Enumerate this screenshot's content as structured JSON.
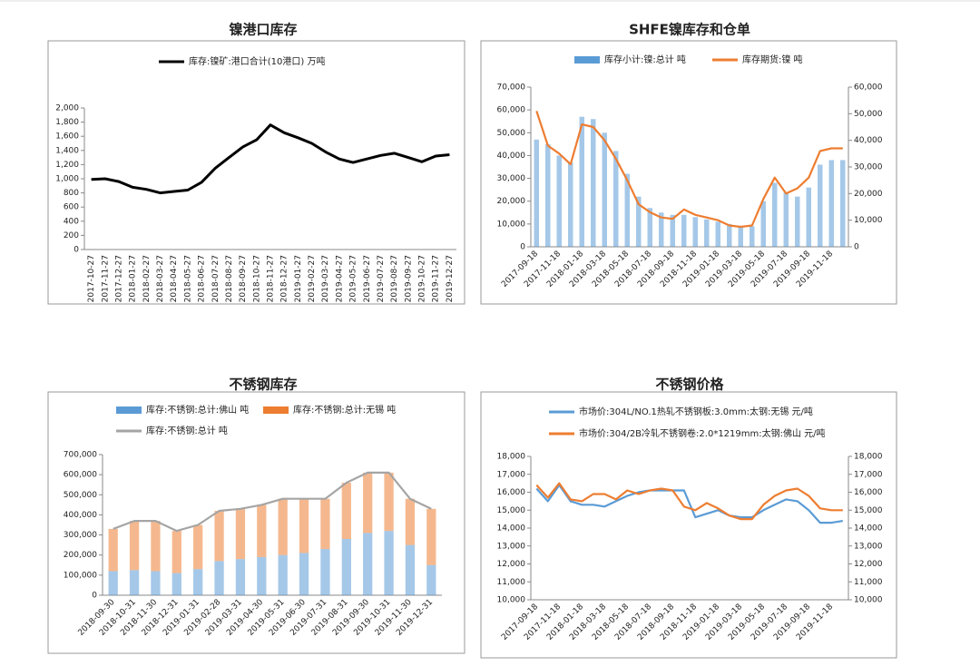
{
  "chart_data": [
    {
      "type": "line",
      "title": "镍港口库存",
      "categories": [
        "2017-10-27",
        "2017-11-27",
        "2017-12-27",
        "2018-01-27",
        "2018-02-27",
        "2018-03-27",
        "2018-04-27",
        "2018-05-27",
        "2018-06-27",
        "2018-07-27",
        "2018-08-27",
        "2018-09-27",
        "2018-10-27",
        "2018-11-27",
        "2018-12-27",
        "2019-01-27",
        "2019-02-27",
        "2019-03-27",
        "2019-04-27",
        "2019-05-27",
        "2019-06-27",
        "2019-07-27",
        "2019-08-27",
        "2019-09-27",
        "2019-10-27",
        "2019-11-27",
        "2019-12-27"
      ],
      "series": [
        {
          "name": "库存:镍矿:港口合计(10港口) 万吨",
          "color": "#000000",
          "kind": "line",
          "values": [
            990,
            1000,
            960,
            880,
            850,
            800,
            820,
            840,
            950,
            1150,
            1300,
            1450,
            1550,
            1760,
            1650,
            1580,
            1500,
            1380,
            1280,
            1230,
            1280,
            1330,
            1360,
            1300,
            1240,
            1320,
            1340
          ]
        }
      ],
      "ylim": [
        0,
        2000
      ],
      "yticks": [
        0,
        200,
        400,
        600,
        800,
        {
          "value": 1000,
          "label": "1,000"
        },
        {
          "value": 1200,
          "label": "1,200"
        },
        {
          "value": 1400,
          "label": "1,400"
        },
        {
          "value": 1600,
          "label": "1,600"
        },
        {
          "value": 1800,
          "label": "1,800"
        },
        {
          "value": 2000,
          "label": "2,000"
        }
      ]
    },
    {
      "type": "bar",
      "title": "SHFE镍库存和仓单",
      "categories": [
        "2017-09-18",
        null,
        "2017-11-18",
        null,
        "2018-01-18",
        null,
        "2018-03-18",
        null,
        "2018-05-18",
        null,
        "2018-07-18",
        null,
        "2018-09-18",
        null,
        "2018-11-18",
        null,
        "2019-01-18",
        null,
        "2019-03-18",
        null,
        "2019-05-18",
        null,
        "2019-07-18",
        null,
        "2019-09-18",
        null,
        "2019-11-18",
        null
      ],
      "series": [
        {
          "name": "库存小计:镍:总计 吨",
          "color": "#5b9bd5",
          "kind": "bar",
          "values": [
            47000,
            45000,
            40000,
            37000,
            57000,
            56000,
            50000,
            42000,
            32000,
            22000,
            17000,
            15000,
            14000,
            14000,
            13000,
            12000,
            11000,
            10000,
            9000,
            9000,
            20000,
            28000,
            24000,
            22000,
            26000,
            36000,
            38000,
            38000
          ]
        },
        {
          "name": "库存期货:镍 吨",
          "color": "#ed7d31",
          "kind": "line",
          "axis": "y2",
          "values": [
            51000,
            38000,
            35000,
            31000,
            46000,
            45000,
            40000,
            33000,
            25000,
            16000,
            13000,
            11000,
            10500,
            14000,
            12000,
            11000,
            10000,
            8000,
            7500,
            8000,
            18000,
            26000,
            20000,
            22000,
            26000,
            36000,
            37000,
            37000
          ]
        }
      ],
      "ylim": [
        0,
        70000
      ],
      "yticks": [
        0,
        {
          "value": 10000,
          "label": "10,000"
        },
        {
          "value": 20000,
          "label": "20,000"
        },
        {
          "value": 30000,
          "label": "30,000"
        },
        {
          "value": 40000,
          "label": "40,000"
        },
        {
          "value": 50000,
          "label": "50,000"
        },
        {
          "value": 60000,
          "label": "60,000"
        },
        {
          "value": 70000,
          "label": "70,000"
        }
      ],
      "y2lim": [
        0,
        60000
      ],
      "y2ticks": [
        0,
        {
          "value": 10000,
          "label": "10,000"
        },
        {
          "value": 20000,
          "label": "20,000"
        },
        {
          "value": 30000,
          "label": "30,000"
        },
        {
          "value": 40000,
          "label": "40,000"
        },
        {
          "value": 50000,
          "label": "50,000"
        },
        {
          "value": 60000,
          "label": "60,000"
        }
      ]
    },
    {
      "type": "bar",
      "title": "不锈钢库存",
      "stacked": true,
      "categories": [
        "2018-09-30",
        "2018-10-31",
        "2018-11-30",
        "2018-12-31",
        "2019-01-31",
        "2019-02-28",
        "2019-03-31",
        "2019-04-30",
        "2019-05-31",
        "2019-06-30",
        "2019-07-31",
        "2019-08-31",
        "2019-09-30",
        "2019-10-31",
        "2019-11-30",
        "2019-12-31"
      ],
      "series": [
        {
          "name": "库存:不锈钢:总计:佛山 吨",
          "color": "#5b9bd5",
          "kind": "bar",
          "values": [
            120000,
            125000,
            120000,
            110000,
            130000,
            170000,
            180000,
            190000,
            200000,
            210000,
            230000,
            280000,
            310000,
            320000,
            250000,
            150000
          ]
        },
        {
          "name": "库存:不锈钢:总计:无锡 吨",
          "color": "#ed7d31",
          "kind": "bar",
          "values": [
            210000,
            245000,
            250000,
            210000,
            220000,
            250000,
            250000,
            260000,
            280000,
            270000,
            250000,
            280000,
            300000,
            290000,
            230000,
            280000
          ]
        },
        {
          "name": "库存:不锈钢:总计 吨",
          "color": "#a5a5a5",
          "kind": "line",
          "values": [
            330000,
            370000,
            370000,
            320000,
            350000,
            420000,
            430000,
            450000,
            480000,
            480000,
            480000,
            560000,
            610000,
            610000,
            480000,
            430000
          ]
        }
      ],
      "ylim": [
        0,
        700000
      ],
      "yticks": [
        0,
        {
          "value": 100000,
          "label": "100,000"
        },
        {
          "value": 200000,
          "label": "200,000"
        },
        {
          "value": 300000,
          "label": "300,000"
        },
        {
          "value": 400000,
          "label": "400,000"
        },
        {
          "value": 500000,
          "label": "500,000"
        },
        {
          "value": 600000,
          "label": "600,000"
        },
        {
          "value": 700000,
          "label": "700,000"
        }
      ]
    },
    {
      "type": "line",
      "title": "不锈钢价格",
      "categories": [
        "2017-09-18",
        null,
        "2017-11-18",
        null,
        "2018-01-18",
        null,
        "2018-03-18",
        null,
        "2018-05-18",
        null,
        "2018-07-18",
        null,
        "2018-09-18",
        null,
        "2018-11-18",
        null,
        "2019-01-18",
        null,
        "2019-03-18",
        null,
        "2019-05-18",
        null,
        "2019-07-18",
        null,
        "2019-09-18",
        null,
        "2019-11-18",
        null
      ],
      "series": [
        {
          "name": "市场价:304L/NO.1热轧不锈钢板:3.0mm:太钢:无锡 元/吨",
          "color": "#5b9bd5",
          "kind": "line",
          "values": [
            16200,
            15500,
            16400,
            15500,
            15300,
            15300,
            15200,
            15500,
            15800,
            16000,
            16100,
            16100,
            16100,
            16100,
            14600,
            14800,
            15000,
            14700,
            14600,
            14600,
            15000,
            15300,
            15600,
            15500,
            15000,
            14300,
            14300,
            14400
          ]
        },
        {
          "name": "市场价:304/2B冷轧不锈钢卷:2.0*1219mm:太钢:佛山 元/吨",
          "color": "#ed7d31",
          "kind": "line",
          "values": [
            16400,
            15700,
            16500,
            15600,
            15500,
            15900,
            15900,
            15600,
            16100,
            15900,
            16100,
            16200,
            16100,
            15200,
            15000,
            15400,
            15100,
            14700,
            14500,
            14500,
            15300,
            15800,
            16100,
            16200,
            15800,
            15100,
            15000,
            15000
          ]
        }
      ],
      "ylim": [
        10000,
        18000
      ],
      "yticks": [
        {
          "value": 10000,
          "label": "10,000"
        },
        {
          "value": 11000,
          "label": "11,000"
        },
        {
          "value": 12000,
          "label": "12,000"
        },
        {
          "value": 13000,
          "label": "13,000"
        },
        {
          "value": 14000,
          "label": "14,000"
        },
        {
          "value": 15000,
          "label": "15,000"
        },
        {
          "value": 16000,
          "label": "16,000"
        },
        {
          "value": 17000,
          "label": "17,000"
        },
        {
          "value": 18000,
          "label": "18,000"
        }
      ],
      "y2lim": [
        10000,
        18000
      ],
      "y2ticks": [
        {
          "value": 10000,
          "label": "10,000"
        },
        {
          "value": 11000,
          "label": "11,000"
        },
        {
          "value": 12000,
          "label": "12,000"
        },
        {
          "value": 13000,
          "label": "13,000"
        },
        {
          "value": 14000,
          "label": "14,000"
        },
        {
          "value": 15000,
          "label": "15,000"
        },
        {
          "value": 16000,
          "label": "16,000"
        },
        {
          "value": 17000,
          "label": "17,000"
        },
        {
          "value": 18000,
          "label": "18,000"
        }
      ]
    }
  ]
}
